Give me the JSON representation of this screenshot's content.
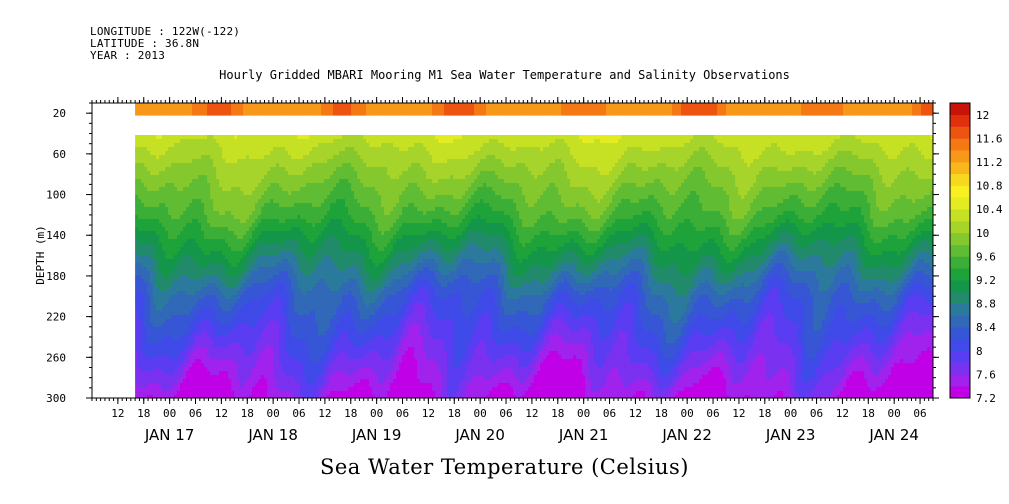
{
  "header": {
    "longitude": "LONGITUDE : 122W(-122)",
    "latitude": "LATITUDE : 36.8N",
    "year": "YEAR : 2013"
  },
  "title": "Hourly Gridded MBARI Mooring M1 Sea Water Temperature and Salinity Observations",
  "bottom_title": "Sea Water Temperature (Celsius)",
  "chart_data": {
    "type": "heatmap",
    "title": "Hourly Gridded MBARI Mooring M1 Sea Water Temperature and Salinity Observations",
    "colorbar_title": "Sea Water Temperature (Celsius)",
    "ylabel": "DEPTH (m)",
    "ylim": [
      300,
      10
    ],
    "y_ticks": [
      20,
      60,
      100,
      140,
      180,
      220,
      260,
      300
    ],
    "x_range": [
      "2013-01-16 06:00",
      "2013-01-24 09:00"
    ],
    "x_data_start": "2013-01-16 16:00",
    "x_hour_ticks": [
      "12",
      "18",
      "00",
      "06",
      "12",
      "18",
      "00",
      "06",
      "12",
      "18",
      "00",
      "06",
      "12",
      "18",
      "00",
      "06",
      "12",
      "18",
      "00",
      "06",
      "12",
      "18",
      "00",
      "06",
      "12",
      "18",
      "00",
      "06",
      "12",
      "18",
      "00",
      "06"
    ],
    "x_day_labels": [
      "JAN 17",
      "JAN 18",
      "JAN 19",
      "JAN 20",
      "JAN 21",
      "JAN 22",
      "JAN 23",
      "JAN 24"
    ],
    "missing_depth_band_m": [
      20,
      40
    ],
    "levels": [
      7.2,
      7.4,
      7.6,
      7.8,
      8,
      8.2,
      8.4,
      8.6,
      8.8,
      9,
      9.2,
      9.4,
      9.6,
      9.8,
      10,
      10.2,
      10.4,
      10.6,
      10.8,
      11,
      11.2,
      11.4,
      11.6,
      11.8,
      12,
      12.2
    ],
    "colorbar_labels": [
      "12",
      "11.6",
      "11.2",
      "10.8",
      "10.4",
      "10",
      "9.6",
      "9.2",
      "8.8",
      "8.4",
      "8",
      "7.6",
      "7.2"
    ],
    "colors": [
      "#c000e6",
      "#a022ec",
      "#7a31f0",
      "#5a3cf2",
      "#3f4ae8",
      "#3756d6",
      "#3168b8",
      "#2b7a9e",
      "#208a6a",
      "#14964a",
      "#1ea23a",
      "#3aae36",
      "#60bc32",
      "#84c82e",
      "#a6d42a",
      "#c6e024",
      "#e2ec20",
      "#f8f020",
      "#f8d81e",
      "#f8b81c",
      "#f89818",
      "#f47814",
      "#ec5410",
      "#e0300c",
      "#c81408",
      "#a00000"
    ],
    "profile_depth_m": [
      40,
      60,
      80,
      100,
      120,
      140,
      160,
      180,
      200,
      220,
      240,
      260,
      280,
      300
    ],
    "profile_temp_c": [
      10.4,
      10.2,
      10.0,
      9.8,
      9.6,
      9.3,
      9.0,
      8.7,
      8.4,
      8.2,
      8.0,
      7.8,
      7.6,
      7.4
    ],
    "surface_temp_c": [
      11.2,
      11.4,
      11.8
    ],
    "grid": false,
    "legend_position": "right"
  }
}
